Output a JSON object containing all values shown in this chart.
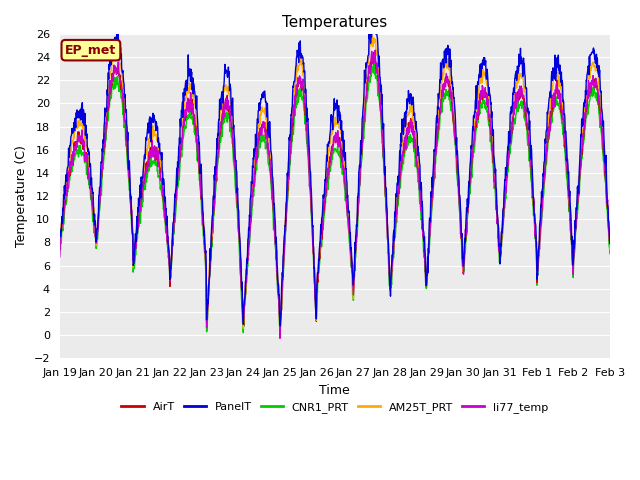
{
  "title": "Temperatures",
  "xlabel": "Time",
  "ylabel": "Temperature (C)",
  "ylim": [
    -2,
    26
  ],
  "yticks": [
    -2,
    0,
    2,
    4,
    6,
    8,
    10,
    12,
    14,
    16,
    18,
    20,
    22,
    24,
    26
  ],
  "xtick_labels": [
    "Jan 19",
    "Jan 20",
    "Jan 21",
    "Jan 22",
    "Jan 23",
    "Jan 24",
    "Jan 25",
    "Jan 26",
    "Jan 27",
    "Jan 28",
    "Jan 29",
    "Jan 30",
    "Jan 31",
    "Feb 1",
    "Feb 2",
    "Feb 3"
  ],
  "annotation": "EP_met",
  "series": {
    "AirT": {
      "color": "#cc0000",
      "lw": 1.0
    },
    "PanelT": {
      "color": "#0000dd",
      "lw": 1.0
    },
    "CNR1_PRT": {
      "color": "#00cc00",
      "lw": 1.0
    },
    "AM25T_PRT": {
      "color": "#ffaa00",
      "lw": 1.0
    },
    "li77_temp": {
      "color": "#cc00cc",
      "lw": 1.0
    }
  },
  "legend_order": [
    "AirT",
    "PanelT",
    "CNR1_PRT",
    "AM25T_PRT",
    "li77_temp"
  ],
  "bg_color": "#ebebeb",
  "fig_bg": "#ffffff",
  "grid_color": "#ffffff",
  "title_fontsize": 11,
  "label_fontsize": 9,
  "tick_fontsize": 8,
  "day_peaks": [
    17,
    23,
    16,
    20,
    20,
    18,
    22,
    17,
    24,
    18,
    22,
    21,
    21,
    21,
    22
  ],
  "day_troughs": [
    8,
    8,
    6,
    5,
    1,
    1,
    0.5,
    4,
    4,
    4,
    5,
    6,
    7,
    5,
    7
  ]
}
